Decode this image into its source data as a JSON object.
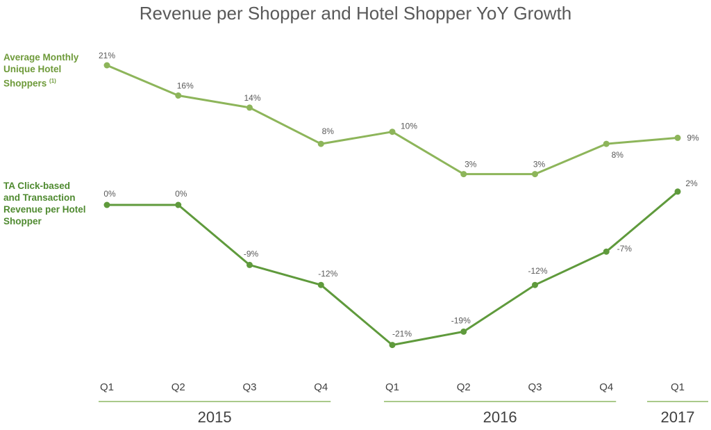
{
  "chart_data": {
    "type": "line",
    "title": "Revenue per Shopper and Hotel Shopper YoY Growth",
    "categories": [
      "Q1",
      "Q2",
      "Q3",
      "Q4",
      "Q1",
      "Q2",
      "Q3",
      "Q4",
      "Q1"
    ],
    "year_groups": [
      {
        "label": "2015",
        "start": 0,
        "end": 3
      },
      {
        "label": "2016",
        "start": 4,
        "end": 7
      },
      {
        "label": "2017",
        "start": 8,
        "end": 8
      }
    ],
    "series": [
      {
        "name": "Average Monthly Unique Hotel Shoppers",
        "name_lines": [
          "Average Monthly",
          "Unique Hotel",
          "Shoppers"
        ],
        "footnote": "(1)",
        "color": "#8db55a",
        "values": [
          21,
          16,
          14,
          8,
          10,
          3,
          3,
          8,
          9
        ],
        "labels": [
          "21%",
          "16%",
          "14%",
          "8%",
          "10%",
          "3%",
          "3%",
          "8%",
          "9%"
        ]
      },
      {
        "name": "TA Click-based and Transaction Revenue per Hotel Shopper",
        "name_lines": [
          "TA Click-based",
          "and Transaction",
          "Revenue per Hotel",
          "Shopper"
        ],
        "footnote": "",
        "color": "#5f9a3c",
        "values": [
          0,
          0,
          -9,
          -12,
          -21,
          -19,
          -12,
          -7,
          2
        ],
        "labels": [
          "0%",
          "0%",
          "-9%",
          "-12%",
          "-21%",
          "-19%",
          "-12%",
          "-7%",
          "2%"
        ]
      }
    ],
    "unit": "%",
    "grid": false,
    "legend": "left"
  }
}
